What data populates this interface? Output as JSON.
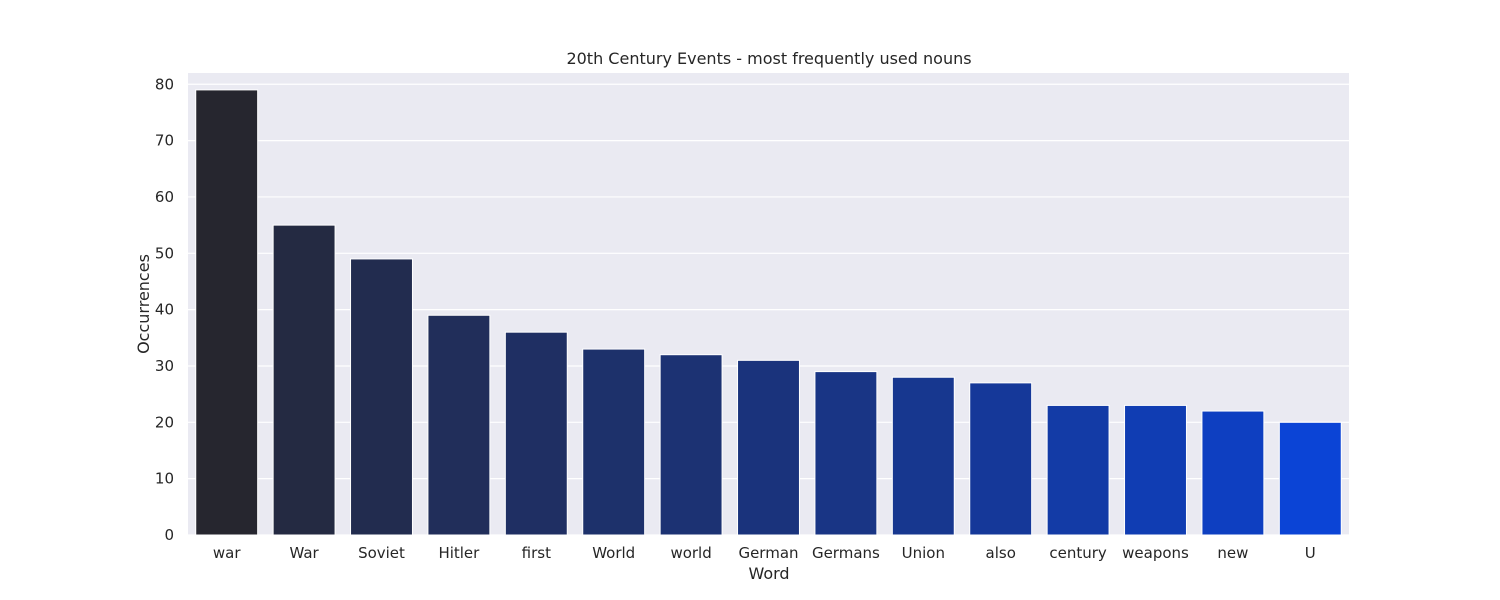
{
  "chart_data": {
    "type": "bar",
    "title": "20th Century Events - most frequently used nouns",
    "xlabel": "Word",
    "ylabel": "Occurrences",
    "categories": [
      "war",
      "War",
      "Soviet",
      "Hitler",
      "first",
      "World",
      "world",
      "German",
      "Germans",
      "Union",
      "also",
      "century",
      "weapons",
      "new",
      "U"
    ],
    "values": [
      79,
      55,
      49,
      39,
      36,
      33,
      32,
      31,
      29,
      28,
      27,
      23,
      23,
      22,
      20
    ],
    "colors": [
      "#26262f",
      "#242a42",
      "#222c4f",
      "#212e5a",
      "#1f2f63",
      "#1d316b",
      "#1c3273",
      "#1a337c",
      "#193585",
      "#17378f",
      "#153899",
      "#133ba6",
      "#103db3",
      "#0e3fc1",
      "#0b44d6"
    ],
    "ylim": [
      0,
      82
    ],
    "yticks": [
      0,
      10,
      20,
      30,
      40,
      50,
      60,
      70,
      80
    ],
    "grid": true,
    "background": "#eaeaf2"
  }
}
